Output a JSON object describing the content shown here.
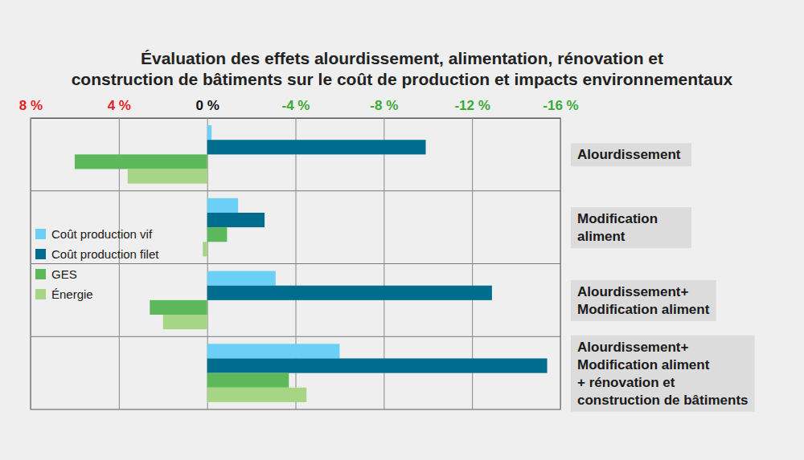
{
  "chart_data": {
    "type": "bar",
    "orientation": "horizontal",
    "title": "Évaluation des effets alourdissement, alimentation, rénovation et\nconstruction de bâtiments sur le coût de production et impacts environnementaux",
    "categories": [
      "Alourdissement",
      "Modification\naliment",
      "Alourdissement+\nModification aliment",
      "Alourdissement+\nModification aliment\n+ rénovation et\nconstruction de bâtiments"
    ],
    "series": [
      {
        "name": "Coût production vif",
        "color": "#6ccff6",
        "values": [
          -0.2,
          -1.4,
          -3.1,
          -6.0
        ]
      },
      {
        "name": "Coût production filet",
        "color": "#006c8e",
        "values": [
          -9.9,
          -2.6,
          -12.9,
          -15.4
        ]
      },
      {
        "name": "GES",
        "color": "#5cb85a",
        "values": [
          6.0,
          -0.9,
          2.6,
          -3.7
        ]
      },
      {
        "name": "Énergie",
        "color": "#a5d585",
        "values": [
          3.6,
          0.2,
          2.0,
          -4.5
        ]
      }
    ],
    "xlim": [
      8,
      -16
    ],
    "xticks": [
      {
        "value": 8,
        "label": "8 %"
      },
      {
        "value": 4,
        "label": "4 %"
      },
      {
        "value": 0,
        "label": "0 %"
      },
      {
        "value": -4,
        "label": "-4 %"
      },
      {
        "value": -8,
        "label": "-8 %"
      },
      {
        "value": -12,
        "label": "-12 %"
      },
      {
        "value": -16,
        "label": "-16 %"
      }
    ],
    "grid": true,
    "legend": "left"
  }
}
